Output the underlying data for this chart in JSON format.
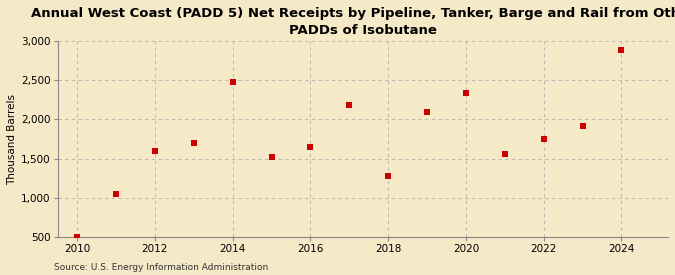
{
  "title": "Annual West Coast (PADD 5) Net Receipts by Pipeline, Tanker, Barge and Rail from Other\nPADDs of Isobutane",
  "ylabel": "Thousand Barrels",
  "source": "Source: U.S. Energy Information Administration",
  "background_color": "#f5e9c8",
  "plot_background_color": "#f5e9c8",
  "marker_color": "#cc0000",
  "marker": "s",
  "marker_size": 4,
  "x": [
    2010,
    2011,
    2012,
    2013,
    2014,
    2015,
    2016,
    2017,
    2018,
    2019,
    2020,
    2021,
    2022,
    2023,
    2024
  ],
  "y": [
    500,
    1050,
    1600,
    1700,
    2480,
    1520,
    1650,
    2180,
    1280,
    2100,
    2340,
    1560,
    1750,
    1920,
    2880
  ],
  "ylim": [
    500,
    3000
  ],
  "yticks": [
    500,
    1000,
    1500,
    2000,
    2500,
    3000
  ],
  "xlim": [
    2009.5,
    2025.2
  ],
  "xticks": [
    2010,
    2012,
    2014,
    2016,
    2018,
    2020,
    2022,
    2024
  ],
  "grid_color": "#b0b0b0",
  "grid_style": "--",
  "title_fontsize": 9.5,
  "label_fontsize": 7.5,
  "tick_fontsize": 7.5,
  "source_fontsize": 6.5
}
